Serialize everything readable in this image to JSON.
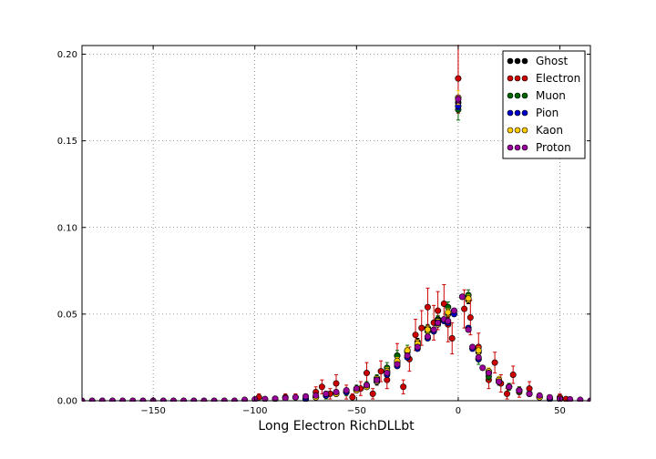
{
  "chart_data": {
    "type": "scatter",
    "title": "",
    "xlabel": "Long Electron RichDLLbt",
    "ylabel": "",
    "xlim": [
      -185,
      65
    ],
    "ylim": [
      0.0,
      0.205
    ],
    "xticks": [
      -150,
      -100,
      -50,
      0,
      50
    ],
    "xtick_labels": [
      "−150",
      "−100",
      "−50",
      "0",
      "50"
    ],
    "yticks": [
      0.0,
      0.05,
      0.1,
      0.15,
      0.2
    ],
    "ytick_labels": [
      "0.00",
      "0.05",
      "0.10",
      "0.15",
      "0.20"
    ],
    "grid": true,
    "legend_position": "top-right",
    "series": [
      {
        "name": "Ghost",
        "color": "#000000",
        "x": [
          -70,
          -60,
          -50,
          -45,
          -40,
          -35,
          -30,
          -25,
          -20,
          -15,
          -10,
          -5,
          0,
          5,
          10,
          15,
          20,
          25,
          30,
          35,
          40
        ],
        "y": [
          0.002,
          0.004,
          0.006,
          0.008,
          0.011,
          0.016,
          0.022,
          0.028,
          0.034,
          0.042,
          0.047,
          0.05,
          0.172,
          0.058,
          0.028,
          0.016,
          0.011,
          0.008,
          0.006,
          0.004,
          0.002
        ],
        "err": [
          0.001,
          0.001,
          0.001,
          0.001,
          0.002,
          0.002,
          0.002,
          0.002,
          0.002,
          0.002,
          0.002,
          0.002,
          0.004,
          0.002,
          0.002,
          0.002,
          0.002,
          0.001,
          0.001,
          0.001,
          0.001
        ]
      },
      {
        "name": "Electron",
        "color": "#cc0000",
        "x": [
          -98,
          -90,
          -85,
          -80,
          -75,
          -70,
          -67,
          -63,
          -60,
          -55,
          -52,
          -48,
          -45,
          -42,
          -38,
          -35,
          -30,
          -27,
          -24,
          -21,
          -18,
          -15,
          -12,
          -10,
          -7,
          -5,
          -3,
          0,
          3,
          6,
          10,
          15,
          18,
          21,
          24,
          27,
          30,
          35,
          40,
          45,
          50,
          53
        ],
        "y": [
          0.002,
          0.001,
          0.002,
          0.002,
          0.001,
          0.005,
          0.008,
          0.004,
          0.01,
          0.005,
          0.002,
          0.007,
          0.016,
          0.004,
          0.017,
          0.012,
          0.026,
          0.008,
          0.024,
          0.038,
          0.042,
          0.054,
          0.045,
          0.052,
          0.056,
          0.044,
          0.036,
          0.186,
          0.053,
          0.048,
          0.031,
          0.012,
          0.022,
          0.01,
          0.004,
          0.015,
          0.005,
          0.007,
          0.002,
          0.001,
          0.002,
          0.001
        ],
        "err": [
          0.002,
          0.001,
          0.002,
          0.002,
          0.001,
          0.003,
          0.004,
          0.003,
          0.005,
          0.004,
          0.002,
          0.004,
          0.006,
          0.003,
          0.006,
          0.005,
          0.007,
          0.004,
          0.007,
          0.009,
          0.01,
          0.011,
          0.01,
          0.011,
          0.011,
          0.01,
          0.009,
          0.02,
          0.011,
          0.01,
          0.008,
          0.005,
          0.006,
          0.005,
          0.003,
          0.005,
          0.003,
          0.004,
          0.002,
          0.001,
          0.002,
          0.001
        ]
      },
      {
        "name": "Muon",
        "color": "#006400",
        "x": [
          -65,
          -55,
          -50,
          -45,
          -40,
          -35,
          -30,
          -25,
          -20,
          -15,
          -10,
          -5,
          0,
          5,
          10,
          15,
          20,
          25,
          30,
          35
        ],
        "y": [
          0.003,
          0.005,
          0.007,
          0.009,
          0.013,
          0.019,
          0.026,
          0.029,
          0.032,
          0.04,
          0.046,
          0.054,
          0.168,
          0.061,
          0.024,
          0.014,
          0.012,
          0.008,
          0.006,
          0.004
        ],
        "err": [
          0.002,
          0.002,
          0.002,
          0.002,
          0.002,
          0.003,
          0.003,
          0.003,
          0.003,
          0.003,
          0.003,
          0.003,
          0.006,
          0.003,
          0.003,
          0.002,
          0.002,
          0.002,
          0.002,
          0.001
        ]
      },
      {
        "name": "Pion",
        "color": "#0000cc",
        "x": [
          -75,
          -70,
          -65,
          -60,
          -55,
          -50,
          -45,
          -40,
          -35,
          -30,
          -25,
          -20,
          -15,
          -12,
          -10,
          -7,
          -5,
          -2,
          0,
          2,
          5,
          7,
          10,
          15,
          20,
          25,
          30,
          35,
          40,
          45
        ],
        "y": [
          0.001,
          0.002,
          0.003,
          0.004,
          0.005,
          0.006,
          0.008,
          0.011,
          0.015,
          0.02,
          0.025,
          0.03,
          0.036,
          0.04,
          0.044,
          0.046,
          0.045,
          0.05,
          0.17,
          0.06,
          0.042,
          0.03,
          0.024,
          0.016,
          0.011,
          0.008,
          0.006,
          0.004,
          0.002,
          0.001
        ],
        "err": [
          0.001,
          0.001,
          0.001,
          0.001,
          0.001,
          0.001,
          0.001,
          0.001,
          0.001,
          0.001,
          0.001,
          0.001,
          0.001,
          0.001,
          0.001,
          0.001,
          0.001,
          0.001,
          0.002,
          0.001,
          0.001,
          0.001,
          0.001,
          0.001,
          0.001,
          0.001,
          0.001,
          0.001,
          0.001,
          0.001
        ]
      },
      {
        "name": "Kaon",
        "color": "#ffcc00",
        "x": [
          -70,
          -60,
          -50,
          -45,
          -40,
          -35,
          -30,
          -25,
          -20,
          -15,
          -10,
          -5,
          0,
          5,
          10,
          15,
          20,
          25,
          30,
          35,
          40
        ],
        "y": [
          0.002,
          0.004,
          0.006,
          0.008,
          0.012,
          0.017,
          0.023,
          0.029,
          0.033,
          0.041,
          0.045,
          0.051,
          0.175,
          0.059,
          0.029,
          0.017,
          0.012,
          0.008,
          0.006,
          0.004,
          0.002
        ],
        "err": [
          0.001,
          0.001,
          0.001,
          0.001,
          0.002,
          0.002,
          0.002,
          0.002,
          0.002,
          0.002,
          0.002,
          0.002,
          0.004,
          0.002,
          0.002,
          0.002,
          0.002,
          0.001,
          0.001,
          0.001,
          0.001
        ]
      },
      {
        "name": "Proton",
        "color": "#990099",
        "x": [
          -185,
          -180,
          -175,
          -170,
          -165,
          -160,
          -155,
          -150,
          -145,
          -140,
          -135,
          -130,
          -125,
          -120,
          -115,
          -110,
          -105,
          -100,
          -95,
          -90,
          -85,
          -80,
          -75,
          -70,
          -65,
          -60,
          -55,
          -50,
          -45,
          -40,
          -35,
          -30,
          -25,
          -20,
          -15,
          -12,
          -10,
          -7,
          -5,
          -2,
          0,
          2,
          5,
          7,
          10,
          12,
          15,
          20,
          25,
          30,
          35,
          40,
          45,
          50,
          55,
          60,
          65
        ],
        "y": [
          0.0,
          0.0,
          0.0,
          0.0,
          0.0,
          0.0,
          0.0,
          0.0,
          0.0,
          0.0,
          0.0,
          0.0,
          0.0,
          0.0,
          0.0,
          0.0,
          0.0005,
          0.0008,
          0.001,
          0.0012,
          0.0015,
          0.002,
          0.0025,
          0.003,
          0.004,
          0.005,
          0.006,
          0.007,
          0.009,
          0.012,
          0.016,
          0.021,
          0.026,
          0.031,
          0.037,
          0.041,
          0.045,
          0.047,
          0.046,
          0.052,
          0.174,
          0.06,
          0.041,
          0.031,
          0.025,
          0.019,
          0.016,
          0.011,
          0.008,
          0.006,
          0.004,
          0.003,
          0.002,
          0.001,
          0.0008,
          0.0005,
          0.0
        ],
        "err": [
          0,
          0,
          0,
          0,
          0,
          0,
          0,
          0,
          0,
          0,
          0,
          0,
          0,
          0,
          0,
          0,
          0.0003,
          0.0004,
          0.0005,
          0.0005,
          0.0006,
          0.0006,
          0.0007,
          0.0008,
          0.0009,
          0.001,
          0.001,
          0.001,
          0.001,
          0.001,
          0.001,
          0.001,
          0.001,
          0.001,
          0.001,
          0.001,
          0.001,
          0.001,
          0.001,
          0.001,
          0.002,
          0.001,
          0.001,
          0.001,
          0.001,
          0.001,
          0.001,
          0.001,
          0.001,
          0.001,
          0.001,
          0.001,
          0.0008,
          0.0006,
          0.0005,
          0.0004,
          0.0
        ]
      }
    ]
  }
}
